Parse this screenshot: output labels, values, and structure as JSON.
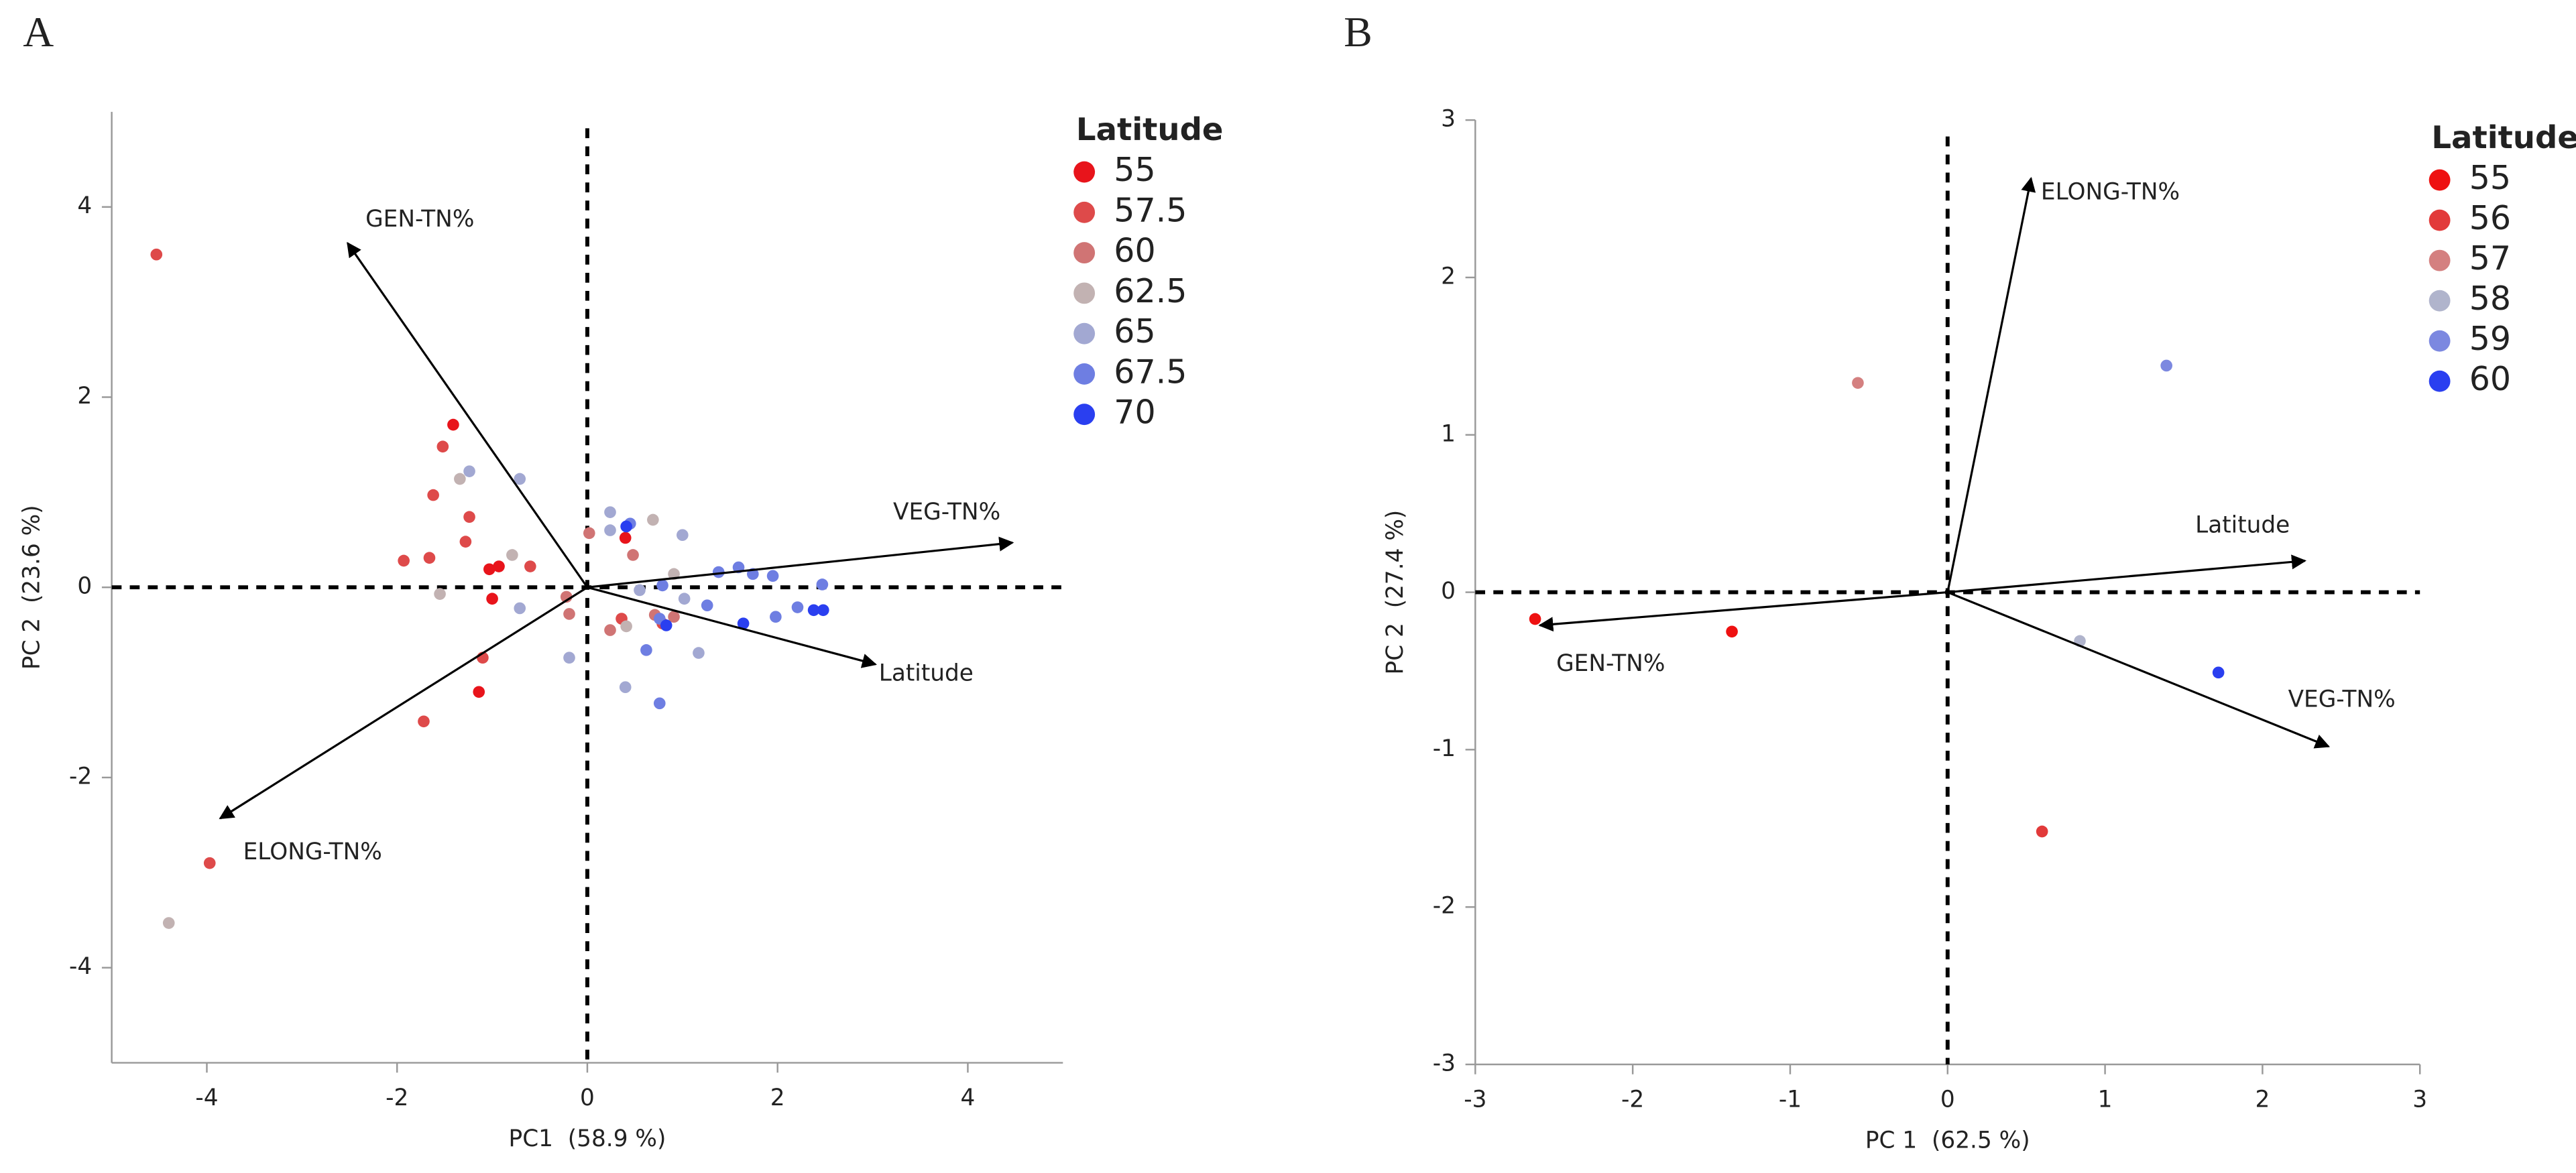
{
  "chart_data": [
    {
      "type": "scatter",
      "panel": "A",
      "xlabel": "PC1  (58.9 %)",
      "ylabel": "PC 2  (23.6 %)",
      "xlim": [
        -5,
        5
      ],
      "ylim": [
        -5,
        5
      ],
      "xticks": [
        -4,
        -2,
        0,
        2,
        4
      ],
      "yticks": [
        -4,
        -2,
        0,
        2,
        4
      ],
      "legend_title": "Latitude",
      "series": [
        {
          "name": "55",
          "color": "#e8141b",
          "x": [
            -1.41,
            -1.03,
            -0.93,
            -1.0,
            -1.14,
            0.4
          ],
          "y": [
            1.71,
            0.19,
            0.22,
            -0.12,
            -1.1,
            0.52
          ]
        },
        {
          "name": "57.5",
          "color": "#de4a4a",
          "x": [
            -4.53,
            -1.52,
            -1.62,
            -1.24,
            -1.93,
            -1.66,
            -1.28,
            -0.6,
            -1.1,
            -1.72,
            -3.97,
            0.36,
            0.79
          ],
          "y": [
            3.5,
            1.48,
            0.97,
            0.74,
            0.28,
            0.31,
            0.48,
            0.22,
            -0.74,
            -1.41,
            -2.9,
            -0.33,
            -0.38
          ]
        },
        {
          "name": "60",
          "color": "#d07474",
          "x": [
            -0.22,
            -0.19,
            0.02,
            0.48,
            0.24,
            0.71,
            0.91
          ],
          "y": [
            -0.1,
            -0.28,
            0.57,
            0.34,
            -0.45,
            -0.29,
            -0.31
          ]
        },
        {
          "name": "62.5",
          "color": "#c2b2b2",
          "x": [
            -1.34,
            -0.79,
            -1.55,
            -4.4,
            0.69,
            0.91,
            0.41
          ],
          "y": [
            1.14,
            0.34,
            -0.07,
            -3.53,
            0.71,
            0.14,
            -0.41
          ]
        },
        {
          "name": "65",
          "color": "#a2a8d2",
          "x": [
            -1.24,
            -0.71,
            -0.71,
            -0.19,
            0.24,
            0.24,
            1.0,
            0.55,
            1.02,
            0.4,
            1.17
          ],
          "y": [
            1.22,
            1.14,
            -0.22,
            -0.74,
            0.79,
            0.6,
            0.55,
            -0.03,
            -0.12,
            -1.05,
            -0.69
          ]
        },
        {
          "name": "67.5",
          "color": "#6e7ee2",
          "x": [
            0.45,
            0.79,
            0.76,
            0.62,
            0.76,
            1.26,
            1.38,
            1.59,
            1.74,
            1.95,
            1.98,
            2.21,
            2.47
          ],
          "y": [
            0.67,
            0.02,
            -0.33,
            -0.66,
            -1.22,
            -0.19,
            0.16,
            0.21,
            0.14,
            0.12,
            -0.31,
            -0.21,
            0.03
          ]
        },
        {
          "name": "70",
          "color": "#2a3ff0",
          "x": [
            0.41,
            0.83,
            1.64,
            2.38,
            2.48
          ],
          "y": [
            0.64,
            -0.4,
            -0.38,
            -0.24,
            -0.24
          ]
        }
      ],
      "arrows": [
        {
          "label": "GEN-TN%",
          "x": -2.52,
          "y": 3.62
        },
        {
          "label": "VEG-TN%",
          "x": 4.47,
          "y": 0.47
        },
        {
          "label": "Latitude",
          "x": 3.03,
          "y": -0.81
        },
        {
          "label": "ELONG-TN%",
          "x": -3.86,
          "y": -2.43
        }
      ]
    },
    {
      "type": "scatter",
      "panel": "B",
      "xlabel": "PC 1  (62.5 %)",
      "ylabel": "PC 2  (27.4 %)",
      "xlim": [
        -3,
        3
      ],
      "ylim": [
        -3,
        3
      ],
      "xticks": [
        -3,
        -2,
        -1,
        0,
        1,
        2,
        3
      ],
      "yticks": [
        -3,
        -2,
        -1,
        0,
        1,
        2,
        3
      ],
      "legend_title": "Latitude",
      "series": [
        {
          "name": "55",
          "color": "#ee1111",
          "x": [
            -2.62,
            -1.37
          ],
          "y": [
            -0.17,
            -0.25
          ]
        },
        {
          "name": "56",
          "color": "#e23a3a",
          "x": [
            0.6
          ],
          "y": [
            -1.52
          ]
        },
        {
          "name": "57",
          "color": "#d48080",
          "x": [
            -0.57
          ],
          "y": [
            1.33
          ]
        },
        {
          "name": "58",
          "color": "#b0b4cc",
          "x": [
            0.84
          ],
          "y": [
            -0.31
          ]
        },
        {
          "name": "59",
          "color": "#7c88e0",
          "x": [
            1.39
          ],
          "y": [
            1.44
          ]
        },
        {
          "name": "60",
          "color": "#2a3ff0",
          "x": [
            1.72
          ],
          "y": [
            -0.51
          ]
        }
      ],
      "arrows": [
        {
          "label": "ELONG-TN%",
          "x": 0.53,
          "y": 2.63
        },
        {
          "label": "Latitude",
          "x": 2.27,
          "y": 0.2
        },
        {
          "label": "GEN-TN%",
          "x": -2.59,
          "y": -0.21
        },
        {
          "label": "VEG-TN%",
          "x": 2.42,
          "y": -0.98
        }
      ]
    }
  ]
}
